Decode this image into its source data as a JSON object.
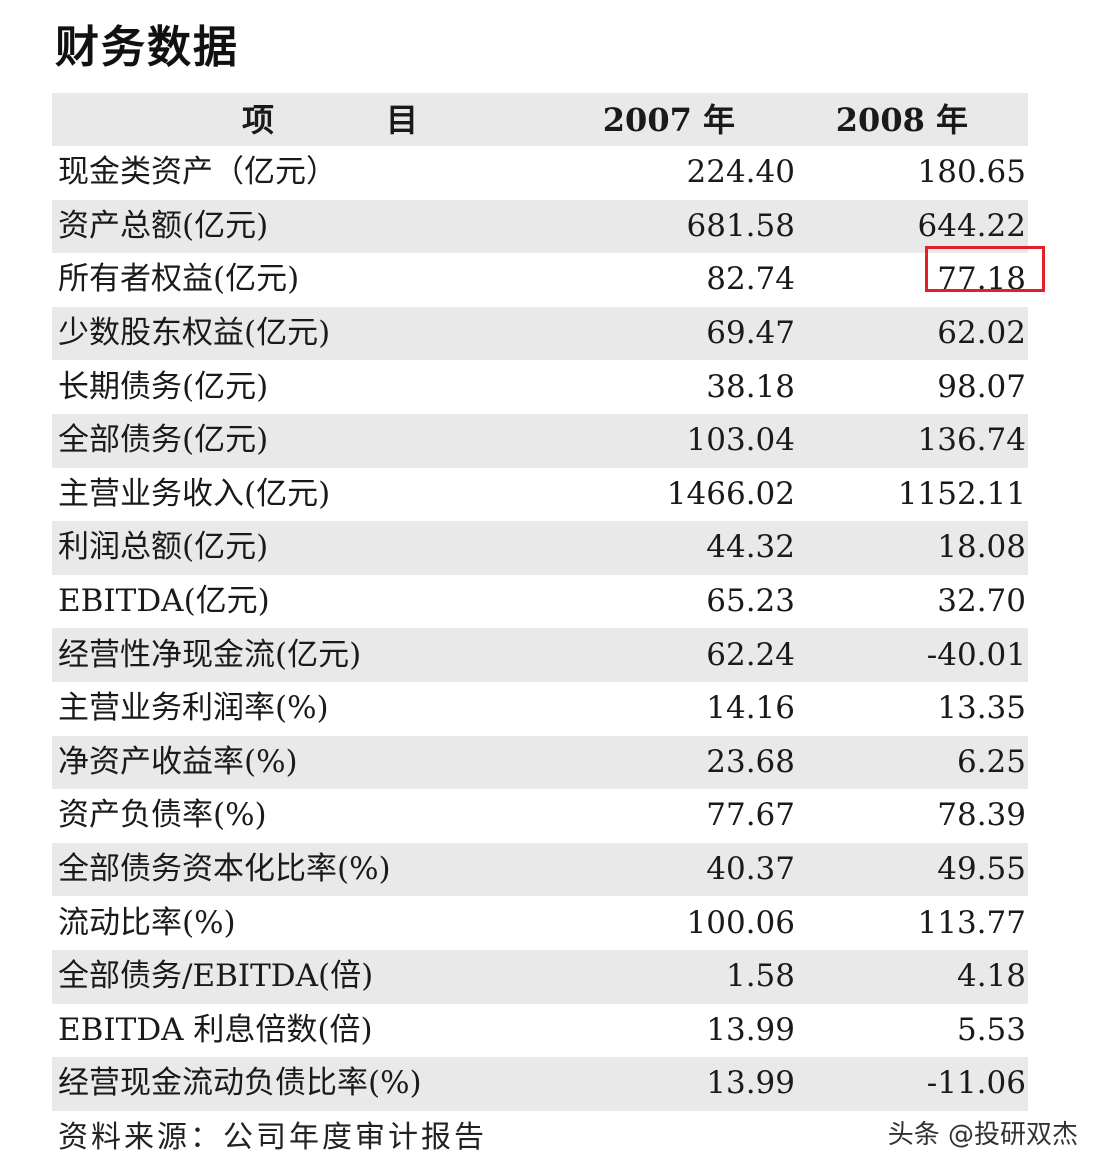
{
  "title": "财务数据",
  "table": {
    "headers": [
      "项　目",
      "2007 年",
      "2008 年"
    ],
    "rows": [
      [
        "现金类资产（亿元）",
        "224.40",
        "180.65"
      ],
      [
        "资产总额(亿元)",
        "681.58",
        "644.22"
      ],
      [
        "所有者权益(亿元)",
        "82.74",
        "77.18"
      ],
      [
        "少数股东权益(亿元)",
        "69.47",
        "62.02"
      ],
      [
        "长期债务(亿元)",
        "38.18",
        "98.07"
      ],
      [
        "全部债务(亿元)",
        "103.04",
        "136.74"
      ],
      [
        "主营业务收入(亿元)",
        "1466.02",
        "1152.11"
      ],
      [
        "利润总额(亿元)",
        "44.32",
        "18.08"
      ],
      [
        "EBITDA(亿元)",
        "65.23",
        "32.70"
      ],
      [
        "经营性净现金流(亿元)",
        "62.24",
        "-40.01"
      ],
      [
        "主营业务利润率(%)",
        "14.16",
        "13.35"
      ],
      [
        "净资产收益率(%)",
        "23.68",
        "6.25"
      ],
      [
        "资产负债率(%)",
        "77.67",
        "78.39"
      ],
      [
        "全部债务资本化比率(%)",
        "40.37",
        "49.55"
      ],
      [
        "流动比率(%)",
        "100.06",
        "113.77"
      ],
      [
        "全部债务/EBITDA(倍)",
        "1.58",
        "4.18"
      ],
      [
        "EBITDA 利息倍数(倍)",
        "13.99",
        "5.53"
      ],
      [
        "经营现金流动负债比率(%)",
        "13.99",
        "-11.06"
      ]
    ],
    "highlight": {
      "row": 2,
      "column": 2,
      "color": "#e3202a"
    },
    "shade_color": "#e9e9e9"
  },
  "source": "资料来源：公司年度审计报告",
  "watermark": "头条 @投研双杰"
}
